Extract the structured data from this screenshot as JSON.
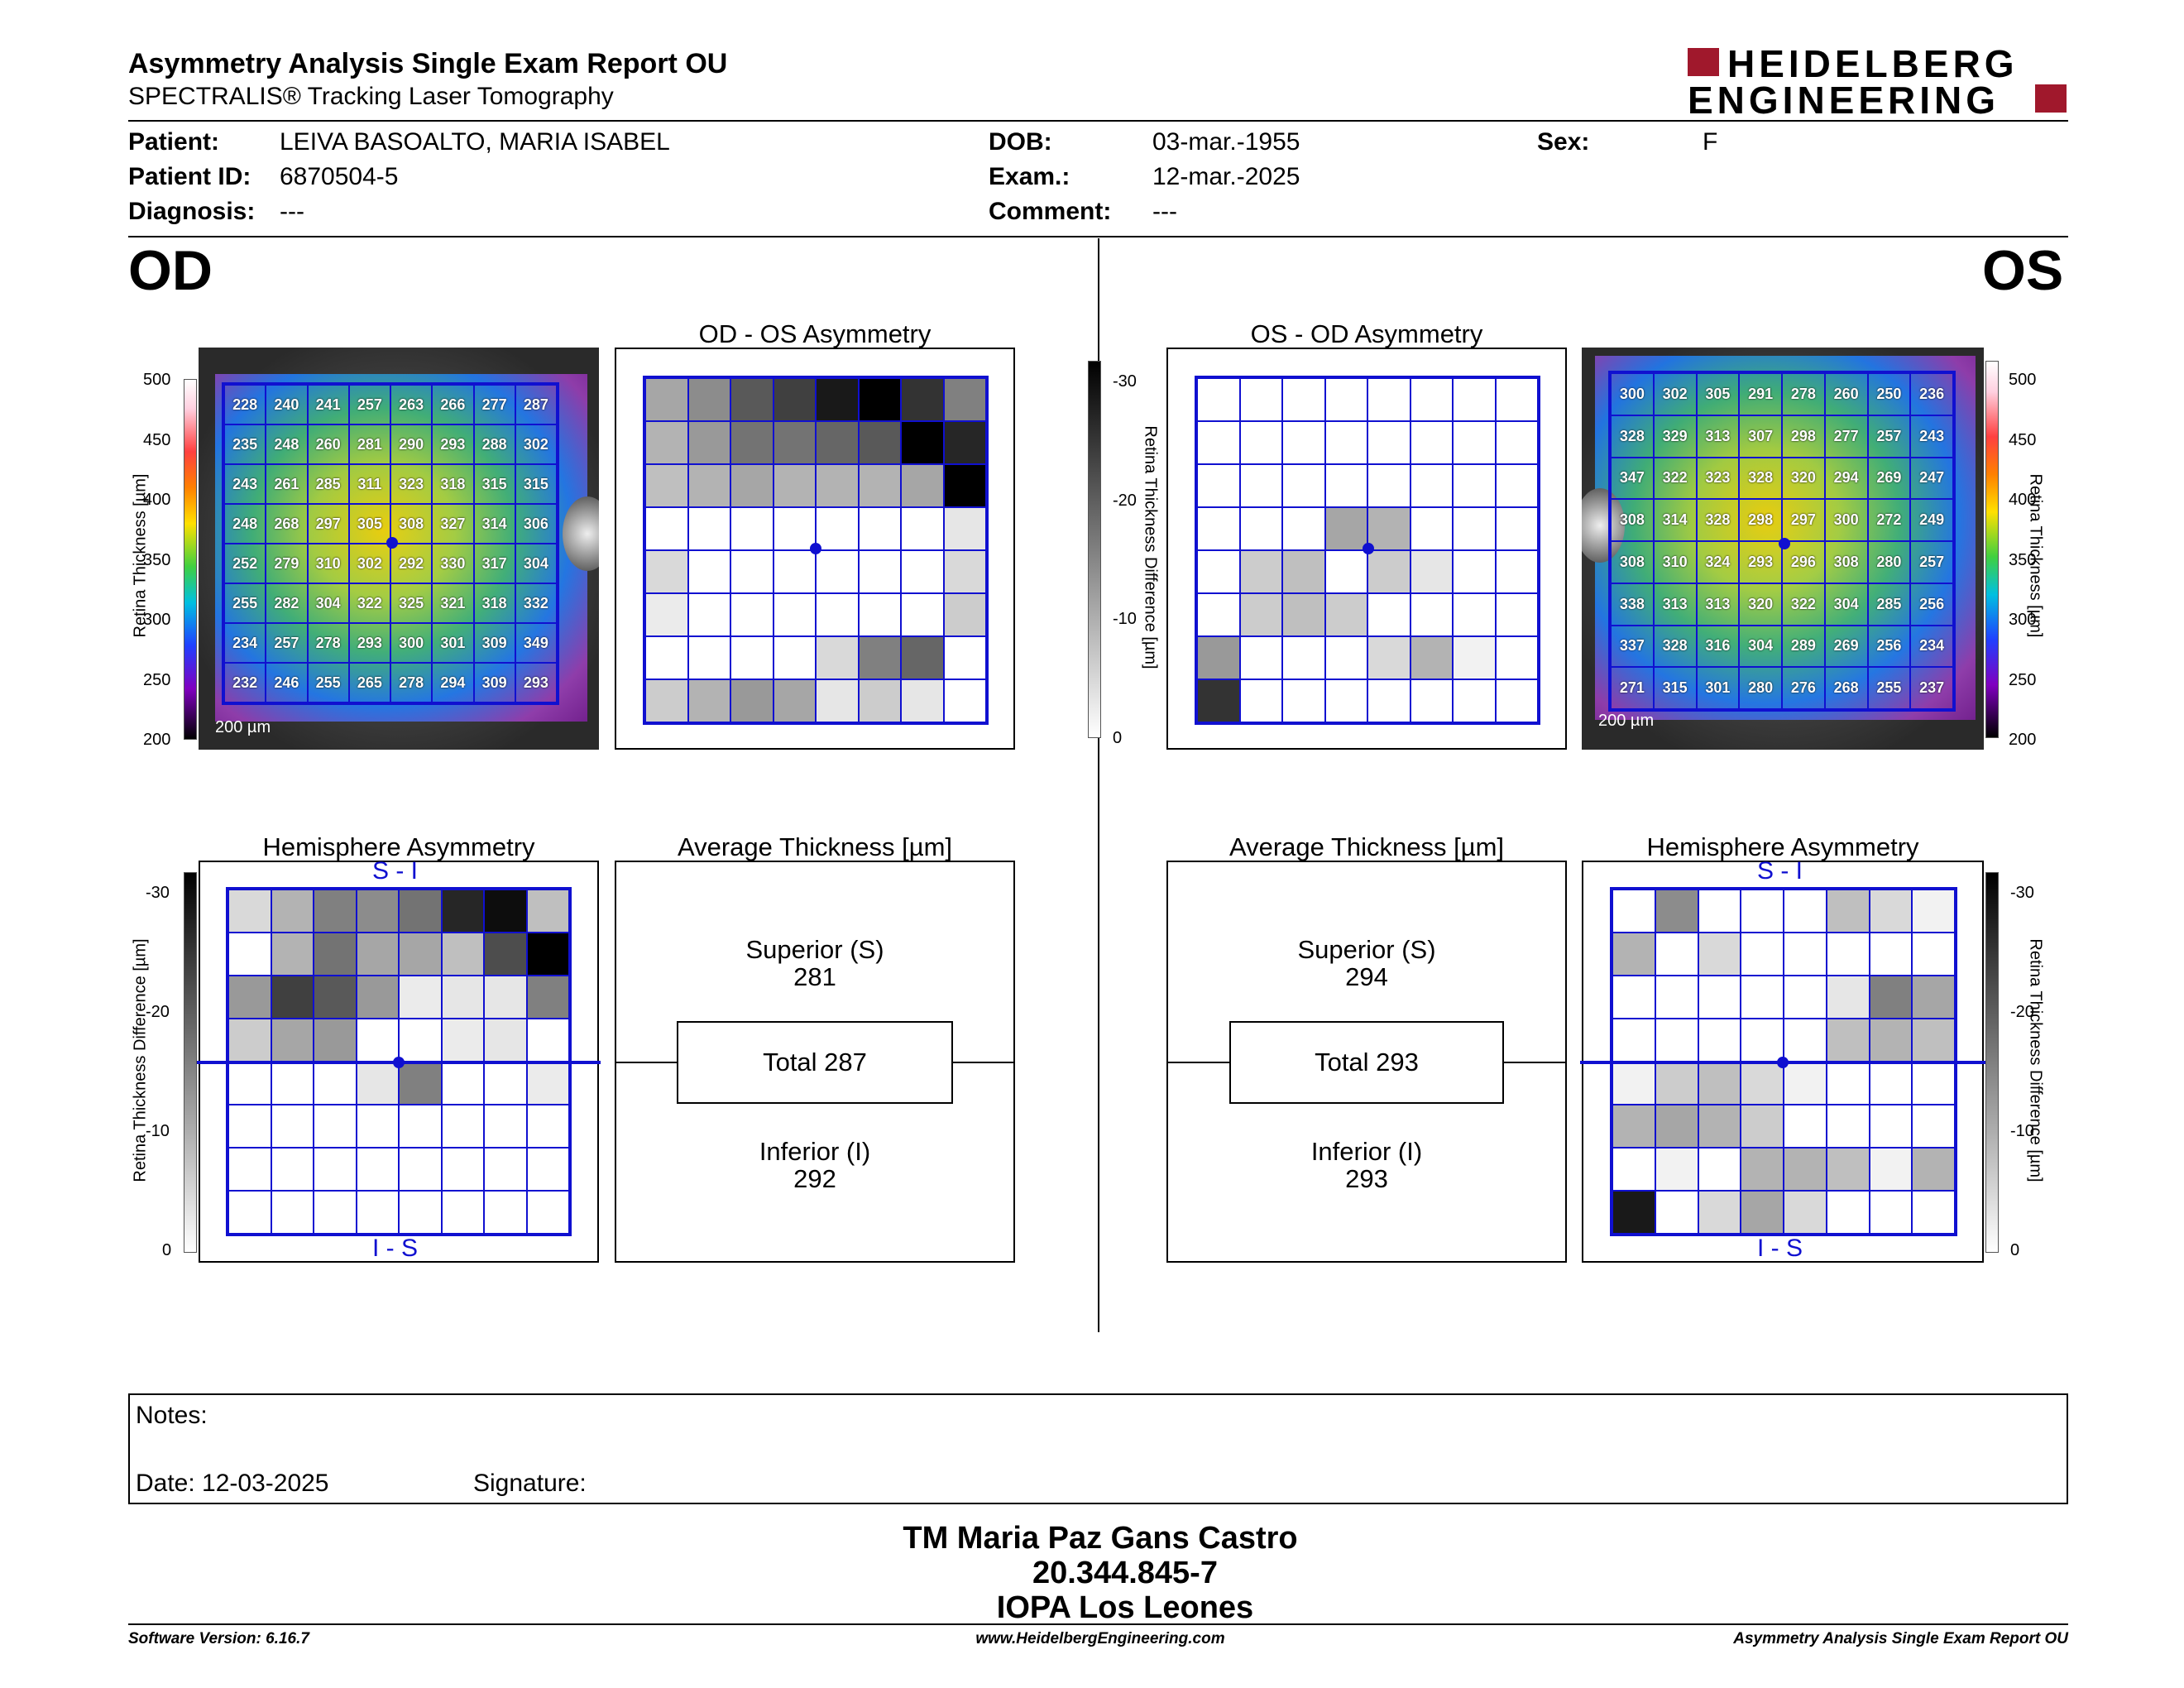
{
  "header": {
    "title": "Asymmetry Analysis Single Exam Report OU",
    "subtitle": "SPECTRALIS® Tracking Laser Tomography",
    "logo_line1": "HEIDELBERG",
    "logo_line2": "ENGINEERING"
  },
  "patient": {
    "patient_label": "Patient:",
    "patient_value": "LEIVA BASOALTO, MARIA ISABEL",
    "id_label": "Patient ID:",
    "id_value": "6870504-5",
    "diag_label": "Diagnosis:",
    "diag_value": "---",
    "dob_label": "DOB:",
    "dob_value": "03-mar.-1955",
    "exam_label": "Exam.:",
    "exam_value": "12-mar.-2025",
    "comment_label": "Comment:",
    "comment_value": "---",
    "sex_label": "Sex:",
    "sex_value": "F"
  },
  "od": {
    "eye": "OD",
    "asym_title": "OD - OS Asymmetry",
    "hemi_title": "Hemisphere Asymmetry",
    "avg_title": "Average Thickness [µm]",
    "superior_label": "Superior (S)",
    "superior_value": "281",
    "total_label": "Total 287",
    "inferior_label": "Inferior (I)",
    "inferior_value": "292",
    "scale_text": "200 µm",
    "si": "S - I",
    "is": "I - S",
    "thickness_values": [
      [
        "228",
        "240",
        "241",
        "257",
        "263",
        "266",
        "277",
        "287"
      ],
      [
        "235",
        "248",
        "260",
        "281",
        "290",
        "293",
        "288",
        "302"
      ],
      [
        "243",
        "261",
        "285",
        "311",
        "323",
        "318",
        "315",
        "315"
      ],
      [
        "248",
        "268",
        "297",
        "305",
        "308",
        "327",
        "314",
        "306"
      ],
      [
        "252",
        "279",
        "310",
        "302",
        "292",
        "330",
        "317",
        "304"
      ],
      [
        "255",
        "282",
        "304",
        "322",
        "325",
        "321",
        "318",
        "332"
      ],
      [
        "234",
        "257",
        "278",
        "293",
        "300",
        "301",
        "309",
        "349"
      ],
      [
        "232",
        "246",
        "255",
        "265",
        "278",
        "294",
        "309",
        "293"
      ]
    ],
    "asym_gray": [
      [
        0.35,
        0.45,
        0.65,
        0.75,
        0.9,
        1.0,
        0.8,
        0.5
      ],
      [
        0.3,
        0.4,
        0.55,
        0.55,
        0.6,
        0.65,
        1.0,
        0.85
      ],
      [
        0.25,
        0.3,
        0.35,
        0.3,
        0.3,
        0.3,
        0.35,
        1.0
      ],
      [
        0,
        0,
        0,
        0,
        0,
        0,
        0,
        0.1
      ],
      [
        0.15,
        0,
        0,
        0,
        0,
        0,
        0,
        0.15
      ],
      [
        0.08,
        0,
        0,
        0,
        0,
        0,
        0,
        0.2
      ],
      [
        0,
        0,
        0,
        0,
        0.15,
        0.5,
        0.6,
        0
      ],
      [
        0.2,
        0.3,
        0.4,
        0.35,
        0.1,
        0.2,
        0.1,
        0
      ]
    ],
    "hemi_gray": [
      [
        0.15,
        0.3,
        0.5,
        0.45,
        0.55,
        0.85,
        0.95,
        0.25
      ],
      [
        0,
        0.3,
        0.55,
        0.35,
        0.35,
        0.25,
        0.7,
        1.0
      ],
      [
        0.4,
        0.75,
        0.65,
        0.4,
        0.08,
        0.1,
        0.1,
        0.5
      ],
      [
        0.2,
        0.35,
        0.4,
        0,
        0,
        0.08,
        0.1,
        0
      ],
      [
        0,
        0,
        0,
        0.1,
        0.5,
        0,
        0,
        0.08
      ],
      [
        0,
        0,
        0,
        0,
        0,
        0,
        0,
        0
      ],
      [
        0,
        0,
        0,
        0,
        0,
        0,
        0,
        0
      ],
      [
        0,
        0,
        0,
        0,
        0,
        0,
        0,
        0
      ]
    ]
  },
  "os": {
    "eye": "OS",
    "asym_title": "OS - OD Asymmetry",
    "hemi_title": "Hemisphere Asymmetry",
    "avg_title": "Average Thickness [µm]",
    "superior_label": "Superior (S)",
    "superior_value": "294",
    "total_label": "Total 293",
    "inferior_label": "Inferior (I)",
    "inferior_value": "293",
    "scale_text": "200 µm",
    "si": "S - I",
    "is": "I - S",
    "thickness_values": [
      [
        "300",
        "302",
        "305",
        "291",
        "278",
        "260",
        "250",
        "236"
      ],
      [
        "328",
        "329",
        "313",
        "307",
        "298",
        "277",
        "257",
        "243"
      ],
      [
        "347",
        "322",
        "323",
        "328",
        "320",
        "294",
        "269",
        "247"
      ],
      [
        "308",
        "314",
        "328",
        "298",
        "297",
        "300",
        "272",
        "249"
      ],
      [
        "308",
        "310",
        "324",
        "293",
        "296",
        "308",
        "280",
        "257"
      ],
      [
        "338",
        "313",
        "313",
        "320",
        "322",
        "304",
        "285",
        "256"
      ],
      [
        "337",
        "328",
        "316",
        "304",
        "289",
        "269",
        "256",
        "234"
      ],
      [
        "271",
        "315",
        "301",
        "280",
        "276",
        "268",
        "255",
        "237"
      ]
    ],
    "asym_gray": [
      [
        0,
        0,
        0,
        0,
        0,
        0,
        0,
        0
      ],
      [
        0,
        0,
        0,
        0,
        0,
        0,
        0,
        0
      ],
      [
        0,
        0,
        0,
        0,
        0,
        0,
        0,
        0
      ],
      [
        0,
        0,
        0,
        0.35,
        0.3,
        0,
        0,
        0
      ],
      [
        0,
        0.2,
        0.25,
        0,
        0.2,
        0.1,
        0,
        0
      ],
      [
        0,
        0.2,
        0.25,
        0.2,
        0,
        0,
        0,
        0
      ],
      [
        0.4,
        0,
        0,
        0,
        0.15,
        0.3,
        0.05,
        0
      ],
      [
        0.8,
        0,
        0,
        0,
        0,
        0,
        0,
        0
      ]
    ],
    "hemi_gray": [
      [
        0,
        0.45,
        0,
        0,
        0,
        0.25,
        0.15,
        0.05
      ],
      [
        0.3,
        0,
        0.15,
        0,
        0,
        0,
        0,
        0
      ],
      [
        0,
        0,
        0,
        0,
        0,
        0.1,
        0.5,
        0.35
      ],
      [
        0,
        0,
        0,
        0,
        0,
        0.25,
        0.3,
        0.25
      ],
      [
        0.05,
        0.2,
        0.25,
        0.15,
        0.05,
        0,
        0,
        0
      ],
      [
        0.3,
        0.35,
        0.3,
        0.2,
        0,
        0,
        0,
        0
      ],
      [
        0,
        0.05,
        0,
        0.3,
        0.3,
        0.25,
        0.05,
        0.3
      ],
      [
        0.9,
        0,
        0.15,
        0.35,
        0.15,
        0,
        0,
        0
      ]
    ]
  },
  "scales": {
    "thickness_label": "Retina Thickness [µm]",
    "thickness_label_os": "Retina  Thickness [µm]",
    "thickness_ticks": [
      "500",
      "450",
      "400",
      "350",
      "300",
      "250",
      "200"
    ],
    "diff_label": "Retina Thickness Difference [µm]",
    "diff_ticks": [
      "-30",
      "-20",
      "-10",
      "0"
    ]
  },
  "notes": {
    "notes_label": "Notes:",
    "date_label": "Date: 12-03-2025",
    "signature_label": "Signature:"
  },
  "signatory": {
    "name": "TM Maria Paz Gans Castro",
    "rut": "20.344.845-7",
    "place": "IOPA Los Leones"
  },
  "footer": {
    "software": "Software Version: 6.16.7",
    "website": "www.HeidelbergEngineering.com",
    "report": "Asymmetry Analysis Single Exam Report OU"
  }
}
